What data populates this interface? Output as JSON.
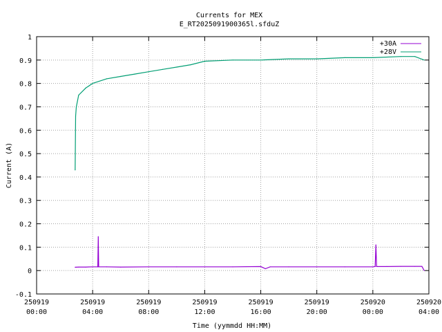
{
  "chart_data": {
    "type": "line",
    "title": "Currents for MEX",
    "subtitle": "E_RT2025091900365l.sfduZ",
    "xlabel": "Time (yymmdd HH:MM)",
    "ylabel": "Current (A)",
    "xlim": [
      "2025-09-19 00:00",
      "2025-09-20 04:00"
    ],
    "ylim": [
      -0.1,
      1.0
    ],
    "grid": true,
    "legend_position": "top-right",
    "x_ticks": [
      {
        "date": "250919",
        "time": "00:00"
      },
      {
        "date": "250919",
        "time": "04:00"
      },
      {
        "date": "250919",
        "time": "08:00"
      },
      {
        "date": "250919",
        "time": "12:00"
      },
      {
        "date": "250919",
        "time": "16:00"
      },
      {
        "date": "250919",
        "time": "20:00"
      },
      {
        "date": "250920",
        "time": "00:00"
      },
      {
        "date": "250920",
        "time": "04:00"
      }
    ],
    "y_ticks": [
      "-0.1",
      "0",
      "0.1",
      "0.2",
      "0.3",
      "0.4",
      "0.5",
      "0.6",
      "0.7",
      "0.8",
      "0.9",
      "1"
    ],
    "series": [
      {
        "name": "+30A",
        "color": "#9400d3",
        "x": [
          "2025-09-19 02:45",
          "2025-09-19 03:00",
          "2025-09-19 03:30",
          "2025-09-19 04:00",
          "2025-09-19 04:22",
          "2025-09-19 04:24",
          "2025-09-19 04:26",
          "2025-09-19 05:00",
          "2025-09-19 06:00",
          "2025-09-19 08:00",
          "2025-09-19 10:00",
          "2025-09-19 12:00",
          "2025-09-19 14:00",
          "2025-09-19 16:00",
          "2025-09-19 16:20",
          "2025-09-19 16:40",
          "2025-09-19 18:00",
          "2025-09-19 20:00",
          "2025-09-19 22:00",
          "2025-09-20 00:00",
          "2025-09-20 00:10",
          "2025-09-20 00:13",
          "2025-09-20 00:16",
          "2025-09-20 01:00",
          "2025-09-20 02:00",
          "2025-09-20 03:00",
          "2025-09-20 03:30",
          "2025-09-20 03:40"
        ],
        "y": [
          0.014,
          0.015,
          0.015,
          0.016,
          0.016,
          0.145,
          0.016,
          0.016,
          0.015,
          0.016,
          0.016,
          0.016,
          0.016,
          0.017,
          0.008,
          0.016,
          0.016,
          0.016,
          0.016,
          0.016,
          0.017,
          0.11,
          0.017,
          0.017,
          0.018,
          0.018,
          0.018,
          0.0
        ]
      },
      {
        "name": "+28V",
        "color": "#009e73",
        "x": [
          "2025-09-19 02:45",
          "2025-09-19 02:47",
          "2025-09-19 02:50",
          "2025-09-19 03:00",
          "2025-09-19 03:30",
          "2025-09-19 04:00",
          "2025-09-19 05:00",
          "2025-09-19 06:00",
          "2025-09-19 07:00",
          "2025-09-19 08:00",
          "2025-09-19 09:00",
          "2025-09-19 10:00",
          "2025-09-19 11:00",
          "2025-09-19 12:00",
          "2025-09-19 14:00",
          "2025-09-19 16:00",
          "2025-09-19 18:00",
          "2025-09-19 20:00",
          "2025-09-19 22:00",
          "2025-09-20 00:00",
          "2025-09-20 02:00",
          "2025-09-20 03:00",
          "2025-09-20 03:40"
        ],
        "y": [
          0.43,
          0.66,
          0.7,
          0.75,
          0.78,
          0.8,
          0.82,
          0.83,
          0.84,
          0.85,
          0.86,
          0.87,
          0.88,
          0.895,
          0.9,
          0.9,
          0.905,
          0.905,
          0.91,
          0.91,
          0.915,
          0.915,
          0.9
        ]
      }
    ]
  }
}
